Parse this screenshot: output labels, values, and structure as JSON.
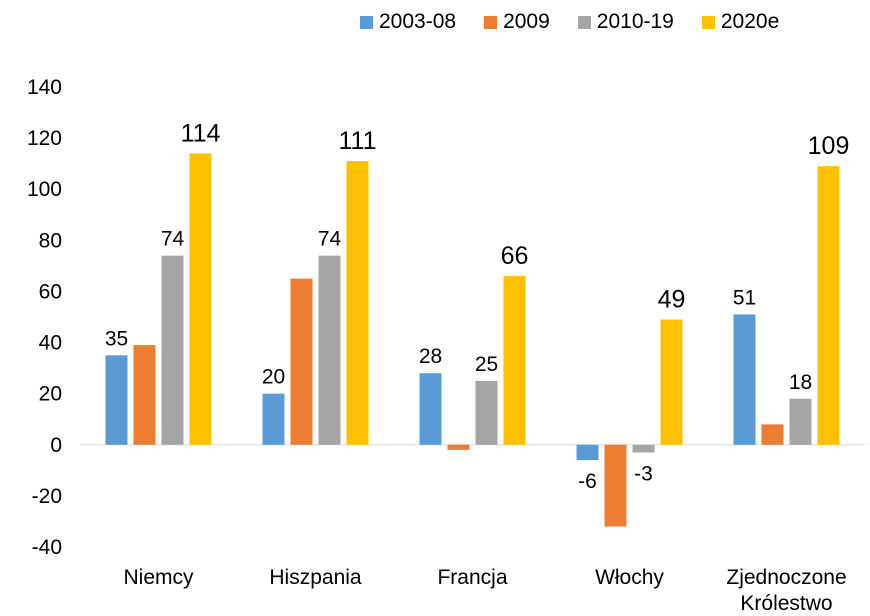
{
  "chart_data": {
    "type": "bar",
    "title": "",
    "xlabel": "",
    "ylabel": "",
    "ylim": [
      -40,
      140
    ],
    "yticks": [
      -40,
      -20,
      0,
      20,
      40,
      60,
      80,
      100,
      120,
      140
    ],
    "grid": false,
    "legend_position": "top",
    "categories": [
      [
        "Niemcy"
      ],
      [
        "Hiszpania"
      ],
      [
        "Francja"
      ],
      [
        "Włochy"
      ],
      [
        "Zjednoczone",
        "Królestwo"
      ]
    ],
    "series": [
      {
        "name": "2003-08",
        "color": "#5B9BD5",
        "values": [
          35,
          20,
          28,
          -6,
          51
        ],
        "labels": [
          "35",
          "20",
          "28",
          "-6",
          "51"
        ]
      },
      {
        "name": "2009",
        "color": "#ED7D31",
        "values": [
          39,
          65,
          -2,
          -32,
          8
        ],
        "labels": [
          null,
          null,
          null,
          null,
          null
        ]
      },
      {
        "name": "2010-19",
        "color": "#A5A5A5",
        "values": [
          74,
          74,
          25,
          -3,
          18
        ],
        "labels": [
          "74",
          "74",
          "25",
          "-3",
          "18"
        ]
      },
      {
        "name": "2020e",
        "color": "#FFC000",
        "values": [
          114,
          111,
          66,
          49,
          109
        ],
        "labels": [
          "114",
          "111",
          "66",
          "49",
          "109"
        ]
      }
    ]
  }
}
